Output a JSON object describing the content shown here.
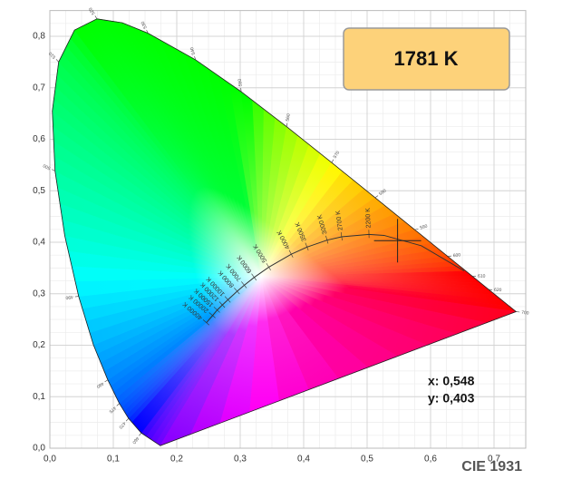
{
  "chart_data": {
    "type": "chromaticity",
    "title": "1781 K",
    "footer": "CIE 1931",
    "xlim": [
      0,
      0.75
    ],
    "ylim": [
      0,
      0.85
    ],
    "xticks": [
      {
        "value": 0,
        "label": "0,0"
      },
      {
        "value": 0.1,
        "label": "0,1"
      },
      {
        "value": 0.2,
        "label": "0,2"
      },
      {
        "value": 0.3,
        "label": "0,3"
      },
      {
        "value": 0.4,
        "label": "0,4"
      },
      {
        "value": 0.5,
        "label": "0,5"
      },
      {
        "value": 0.6,
        "label": "0,6"
      },
      {
        "value": 0.7,
        "label": "0,7"
      }
    ],
    "yticks": [
      {
        "value": 0,
        "label": "0,0"
      },
      {
        "value": 0.1,
        "label": "0,1"
      },
      {
        "value": 0.2,
        "label": "0,2"
      },
      {
        "value": 0.3,
        "label": "0,3"
      },
      {
        "value": 0.4,
        "label": "0,4"
      },
      {
        "value": 0.5,
        "label": "0,5"
      },
      {
        "value": 0.6,
        "label": "0,6"
      },
      {
        "value": 0.7,
        "label": "0,7"
      },
      {
        "value": 0.8,
        "label": "0,8"
      }
    ],
    "grid": true,
    "locus": {
      "x": [
        0.1741,
        0.144,
        0.1241,
        0.1096,
        0.0913,
        0.0687,
        0.0454,
        0.0235,
        0.0082,
        0.0039,
        0.0139,
        0.0389,
        0.0743,
        0.1142,
        0.1547,
        0.2296,
        0.3016,
        0.3731,
        0.4441,
        0.5125,
        0.5752,
        0.627,
        0.6658,
        0.6915,
        0.7347
      ],
      "y": [
        0.005,
        0.0297,
        0.0578,
        0.0868,
        0.1327,
        0.2007,
        0.295,
        0.4127,
        0.5384,
        0.6548,
        0.7502,
        0.812,
        0.8338,
        0.8262,
        0.8059,
        0.7543,
        0.6923,
        0.6245,
        0.5547,
        0.4866,
        0.4242,
        0.3725,
        0.334,
        0.3083,
        0.2653
      ],
      "labels": [
        null,
        460,
        470,
        475,
        480,
        null,
        490,
        null,
        500,
        null,
        510,
        null,
        520,
        null,
        530,
        540,
        550,
        560,
        570,
        580,
        590,
        600,
        610,
        620,
        700
      ]
    },
    "planckian": {
      "x": [
        0.6528,
        0.5857,
        0.5267,
        0.5029,
        0.4599,
        0.4369,
        0.4053,
        0.3805,
        0.3451,
        0.3221,
        0.3064,
        0.2952,
        0.2807,
        0.2719,
        0.2637,
        0.2565,
        0.2468
      ],
      "y": [
        0.3444,
        0.3931,
        0.4133,
        0.4153,
        0.4106,
        0.4041,
        0.3907,
        0.3768,
        0.3516,
        0.3318,
        0.3166,
        0.3048,
        0.2884,
        0.2782,
        0.2683,
        0.2577,
        0.2438
      ],
      "labels": [
        null,
        null,
        null,
        "2200 K",
        "2700 K",
        "3000 K",
        "3500 K",
        "4000 K",
        "5000 K",
        "6000 K",
        "7000 K",
        "8000 K",
        "10000 K",
        "12000 K",
        "15000 K",
        "20000 K",
        "40000 K"
      ]
    },
    "point": {
      "x": 0.548,
      "y": 0.403,
      "x_label": "x: 0,548",
      "y_label": "y: 0,403"
    }
  }
}
